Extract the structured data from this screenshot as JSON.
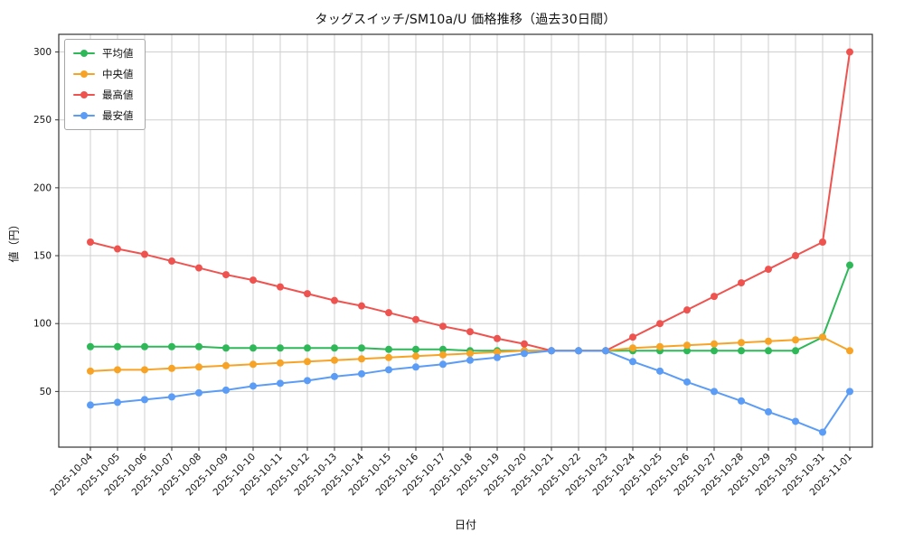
{
  "chart_data": {
    "type": "line",
    "title": "タッグスイッチ/SM10a/U 価格推移（過去30日間）",
    "xlabel": "日付",
    "ylabel": "値（円）",
    "grid": true,
    "legend_position": "upper-left",
    "ylim": [
      9,
      313
    ],
    "yticks": [
      50,
      100,
      150,
      200,
      250,
      300
    ],
    "x": [
      "2025-10-04",
      "2025-10-05",
      "2025-10-06",
      "2025-10-07",
      "2025-10-08",
      "2025-10-09",
      "2025-10-10",
      "2025-10-11",
      "2025-10-12",
      "2025-10-13",
      "2025-10-14",
      "2025-10-15",
      "2025-10-16",
      "2025-10-17",
      "2025-10-18",
      "2025-10-19",
      "2025-10-20",
      "2025-10-21",
      "2025-10-22",
      "2025-10-23",
      "2025-10-24",
      "2025-10-25",
      "2025-10-26",
      "2025-10-27",
      "2025-10-28",
      "2025-10-29",
      "2025-10-30",
      "2025-10-31",
      "2025-11-01"
    ],
    "series": [
      {
        "name": "平均値",
        "color": "#2eb858",
        "values": [
          83,
          83,
          83,
          83,
          83,
          82,
          82,
          82,
          82,
          82,
          82,
          81,
          81,
          81,
          80,
          80,
          80,
          80,
          80,
          80,
          80,
          80,
          80,
          80,
          80,
          80,
          80,
          90,
          143
        ]
      },
      {
        "name": "中央値",
        "color": "#f7a325",
        "values": [
          65,
          66,
          66,
          67,
          68,
          69,
          70,
          71,
          72,
          73,
          74,
          75,
          76,
          77,
          78,
          79,
          80,
          80,
          80,
          80,
          82,
          83,
          84,
          85,
          86,
          87,
          88,
          90,
          80
        ]
      },
      {
        "name": "最高値",
        "color": "#ef5350",
        "values": [
          160,
          155,
          151,
          146,
          141,
          136,
          132,
          127,
          122,
          117,
          113,
          108,
          103,
          98,
          94,
          89,
          85,
          80,
          80,
          80,
          90,
          100,
          110,
          120,
          130,
          140,
          150,
          160,
          300
        ]
      },
      {
        "name": "最安値",
        "color": "#5b9cf6",
        "values": [
          40,
          42,
          44,
          46,
          49,
          51,
          54,
          56,
          58,
          61,
          63,
          66,
          68,
          70,
          73,
          75,
          78,
          80,
          80,
          80,
          72,
          65,
          57,
          50,
          43,
          35,
          28,
          20,
          50
        ]
      }
    ]
  }
}
